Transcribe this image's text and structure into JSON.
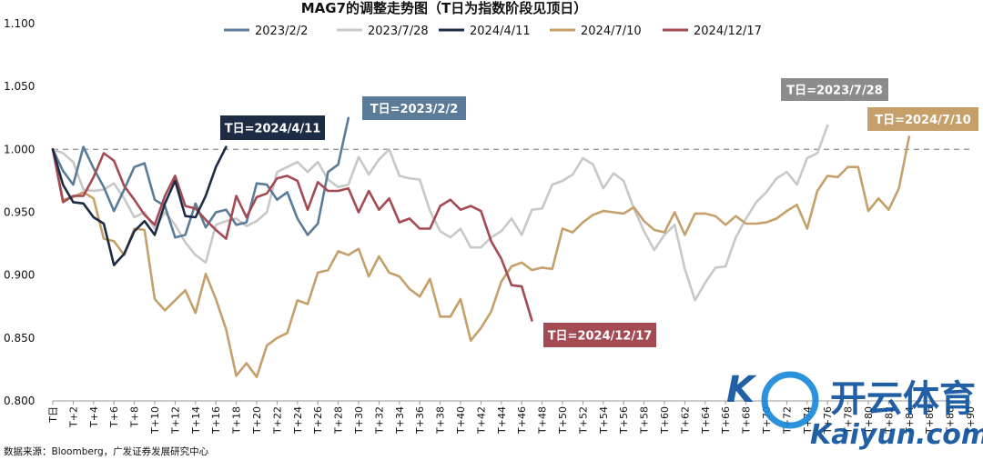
{
  "chart_data": {
    "type": "line",
    "title": "MAG7的调整走势图（T日为指数阶段见顶日）",
    "source": "数据来源：Bloomberg，广发证券发展研究中心",
    "watermark": {
      "main": "开云体育",
      "sub": "Kaiyun.com"
    },
    "ylim": [
      0.8,
      1.1
    ],
    "yticks": [
      "1.100",
      "1.050",
      "1.000",
      "0.950",
      "0.900",
      "0.850",
      "0.800"
    ],
    "xlim": [
      0,
      90
    ],
    "xticks": [
      "T日",
      "T+2",
      "T+4",
      "T+6",
      "T+8",
      "T+10",
      "T+12",
      "T+14",
      "T+16",
      "T+18",
      "T+20",
      "T+22",
      "T+24",
      "T+26",
      "T+28",
      "T+30",
      "T+32",
      "T+34",
      "T+36",
      "T+38",
      "T+40",
      "T+42",
      "T+44",
      "T+46",
      "T+48",
      "T+50",
      "T+52",
      "T+54",
      "T+56",
      "T+58",
      "T+60",
      "T+62",
      "T+64",
      "T+66",
      "T+68",
      "T+70",
      "T+72",
      "T+74",
      "T+76",
      "T+78",
      "T+80",
      "T+82",
      "T+84",
      "T+86",
      "T+88",
      "T+90"
    ],
    "reference_line": 1.0,
    "legend_position": "top",
    "series": [
      {
        "name": "2023/2/2",
        "color": "#5b7c99",
        "callout": "T日=2023/2/2",
        "values": [
          1.0,
          0.983,
          0.972,
          1.002,
          0.985,
          0.97,
          0.951,
          0.968,
          0.986,
          0.989,
          0.96,
          0.955,
          0.93,
          0.932,
          0.957,
          0.938,
          0.95,
          0.952,
          0.94,
          0.942,
          0.973,
          0.972,
          0.96,
          0.966,
          0.945,
          0.932,
          0.941,
          0.982,
          0.988,
          1.025
        ]
      },
      {
        "name": "2023/7/28",
        "color": "#c8c8c8",
        "callout": "T日=2023/7/28",
        "values": [
          1.0,
          0.997,
          0.99,
          0.968,
          0.967,
          0.968,
          0.973,
          0.961,
          0.946,
          0.95,
          0.937,
          0.95,
          0.94,
          0.926,
          0.916,
          0.91,
          0.94,
          0.943,
          0.945,
          0.939,
          0.943,
          0.95,
          0.982,
          0.986,
          0.99,
          0.982,
          0.99,
          0.976,
          0.97,
          0.972,
          0.994,
          0.98,
          0.992,
          1.0,
          0.979,
          0.977,
          0.976,
          0.951,
          0.935,
          0.93,
          0.937,
          0.922,
          0.922,
          0.93,
          0.935,
          0.945,
          0.932,
          0.952,
          0.953,
          0.972,
          0.975,
          0.98,
          0.993,
          0.988,
          0.969,
          0.981,
          0.975,
          0.953,
          0.935,
          0.92,
          0.932,
          0.94,
          0.905,
          0.88,
          0.894,
          0.906,
          0.907,
          0.93,
          0.945,
          0.958,
          0.966,
          0.977,
          0.982,
          0.972,
          0.993,
          0.997,
          1.019
        ]
      },
      {
        "name": "2024/4/11",
        "color": "#1e2b45",
        "callout": "T日=2024/4/11",
        "values": [
          1.0,
          0.972,
          0.958,
          0.957,
          0.946,
          0.941,
          0.908,
          0.917,
          0.935,
          0.943,
          0.932,
          0.957,
          0.975,
          0.947,
          0.946,
          0.963,
          0.986,
          1.002
        ]
      },
      {
        "name": "2024/7/10",
        "color": "#c6a06b",
        "callout": "T日=2024/7/10",
        "values": [
          1.0,
          0.96,
          0.962,
          0.966,
          0.961,
          0.929,
          0.927,
          0.916,
          0.937,
          0.936,
          0.881,
          0.872,
          0.88,
          0.888,
          0.87,
          0.901,
          0.881,
          0.857,
          0.82,
          0.83,
          0.819,
          0.844,
          0.85,
          0.854,
          0.88,
          0.877,
          0.902,
          0.904,
          0.919,
          0.916,
          0.921,
          0.899,
          0.915,
          0.902,
          0.899,
          0.889,
          0.883,
          0.897,
          0.867,
          0.867,
          0.881,
          0.848,
          0.858,
          0.871,
          0.895,
          0.907,
          0.91,
          0.904,
          0.906,
          0.905,
          0.937,
          0.934,
          0.942,
          0.948,
          0.951,
          0.95,
          0.949,
          0.954,
          0.943,
          0.936,
          0.934,
          0.95,
          0.932,
          0.949,
          0.949,
          0.947,
          0.94,
          0.947,
          0.941,
          0.941,
          0.942,
          0.945,
          0.951,
          0.956,
          0.937,
          0.967,
          0.979,
          0.978,
          0.986,
          0.986,
          0.951,
          0.961,
          0.952,
          0.969,
          1.01
        ]
      },
      {
        "name": "2024/12/17",
        "color": "#a34a53",
        "callout": "T日=2024/12/17",
        "values": [
          1.0,
          0.958,
          0.963,
          0.963,
          0.978,
          0.997,
          0.991,
          0.971,
          0.96,
          0.948,
          0.94,
          0.963,
          0.979,
          0.955,
          0.953,
          0.944,
          0.936,
          0.929,
          0.963,
          0.946,
          0.962,
          0.965,
          0.977,
          0.979,
          0.975,
          0.952,
          0.974,
          0.967,
          0.967,
          0.969,
          0.95,
          0.967,
          0.952,
          0.961,
          0.942,
          0.945,
          0.937,
          0.937,
          0.955,
          0.96,
          0.952,
          0.955,
          0.951,
          0.927,
          0.913,
          0.892,
          0.891,
          0.864
        ]
      }
    ]
  }
}
